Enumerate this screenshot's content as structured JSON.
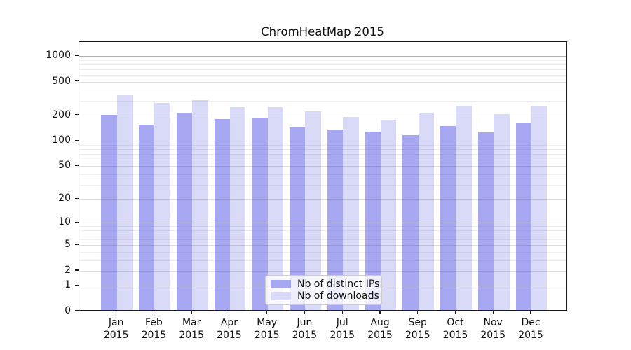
{
  "chart_data": {
    "type": "bar",
    "title": "ChromHeatMap 2015",
    "categories": [
      "Jan 2015",
      "Feb 2015",
      "Mar 2015",
      "Apr 2015",
      "May 2015",
      "Jun 2015",
      "Jul 2015",
      "Aug 2015",
      "Sep 2015",
      "Oct 2015",
      "Nov 2015",
      "Dec 2015"
    ],
    "series": [
      {
        "name": "Nb of distinct IPs",
        "key": "distinct-ips",
        "color": "#a8a8f2",
        "values": [
          197,
          151,
          208,
          174,
          183,
          138,
          132,
          123,
          112,
          143,
          121,
          155
        ]
      },
      {
        "name": "Nb of downloads",
        "key": "downloads",
        "color": "#d9d9f8",
        "values": [
          334,
          270,
          294,
          243,
          239,
          214,
          185,
          172,
          203,
          251,
          201,
          251
        ]
      }
    ],
    "xlabel": "",
    "ylabel": "",
    "y_ticks": [
      0,
      1,
      2,
      5,
      10,
      20,
      50,
      100,
      200,
      500,
      1000
    ],
    "y_major_ticks": [
      1,
      10,
      100,
      1000
    ],
    "y_minor_gridlines": [
      3,
      4,
      6,
      7,
      8,
      9,
      30,
      40,
      60,
      70,
      80,
      90,
      300,
      400,
      600,
      700,
      800,
      900
    ],
    "ylim": [
      0,
      1460
    ],
    "scale": "log1p",
    "grid": "horizontal",
    "legend_position": "lower center"
  }
}
